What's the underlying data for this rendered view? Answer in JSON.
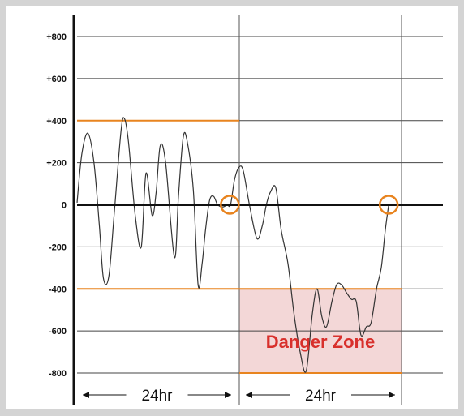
{
  "chart_data": {
    "type": "line",
    "title": "",
    "xlabel": "",
    "ylabel": "",
    "ylim": [
      -800,
      800
    ],
    "ticks": [
      {
        "value": 800,
        "label": "+800"
      },
      {
        "value": 600,
        "label": "+600"
      },
      {
        "value": 400,
        "label": "+400"
      },
      {
        "value": 200,
        "label": "+200"
      },
      {
        "value": 0,
        "label": "0"
      },
      {
        "value": -200,
        "label": "-200"
      },
      {
        "value": -400,
        "label": "-400"
      },
      {
        "value": -600,
        "label": "-600"
      },
      {
        "value": -800,
        "label": "-800"
      }
    ],
    "xlim": [
      0,
      48
    ],
    "period_labels": [
      "24hr",
      "24hr"
    ],
    "threshold_upper": 400,
    "threshold_lower": -400,
    "danger_zone": {
      "label": "Danger Zone",
      "x": [
        24,
        48
      ],
      "y": [
        -800,
        -400
      ]
    },
    "zero_crossings": [
      {
        "x": 22.6,
        "y": 0
      },
      {
        "x": 46.1,
        "y": 0
      }
    ],
    "series": [
      {
        "x": [
          0,
          0.7,
          1.6,
          2.5,
          3.3,
          3.9,
          4.7,
          5.5,
          6.5,
          7.0,
          7.6,
          8.6,
          9.5,
          10.2,
          11.1,
          11.7,
          12.3,
          13.1,
          14.4,
          15.0,
          15.7,
          16.3,
          17.2,
          17.9,
          18.5,
          19.0,
          19.6,
          20.2,
          20.8,
          21.6,
          22.2,
          22.7,
          23.3,
          24.0,
          24.6,
          25.5,
          26.6,
          27.4,
          28.0,
          28.6,
          29.4,
          30.2,
          31.2,
          32.1,
          33.0,
          33.9,
          34.8,
          35.5,
          36.2,
          36.9,
          37.7,
          38.4,
          39.1,
          39.9,
          40.6,
          41.3,
          42.0,
          42.8,
          43.5,
          44.3,
          45.0,
          45.6,
          46.1
        ],
        "y": [
          10,
          240,
          340,
          200,
          -100,
          -350,
          -340,
          -40,
          350,
          410,
          300,
          -50,
          -200,
          150,
          -50,
          60,
          280,
          200,
          -250,
          40,
          320,
          300,
          70,
          -380,
          -280,
          -120,
          20,
          40,
          0,
          -10,
          0,
          0,
          120,
          180,
          160,
          0,
          -160,
          -100,
          0,
          60,
          80,
          -120,
          -280,
          -520,
          -700,
          -790,
          -520,
          -400,
          -530,
          -580,
          -460,
          -380,
          -380,
          -420,
          -450,
          -460,
          -620,
          -580,
          -560,
          -400,
          -300,
          -120,
          0
        ]
      }
    ]
  }
}
